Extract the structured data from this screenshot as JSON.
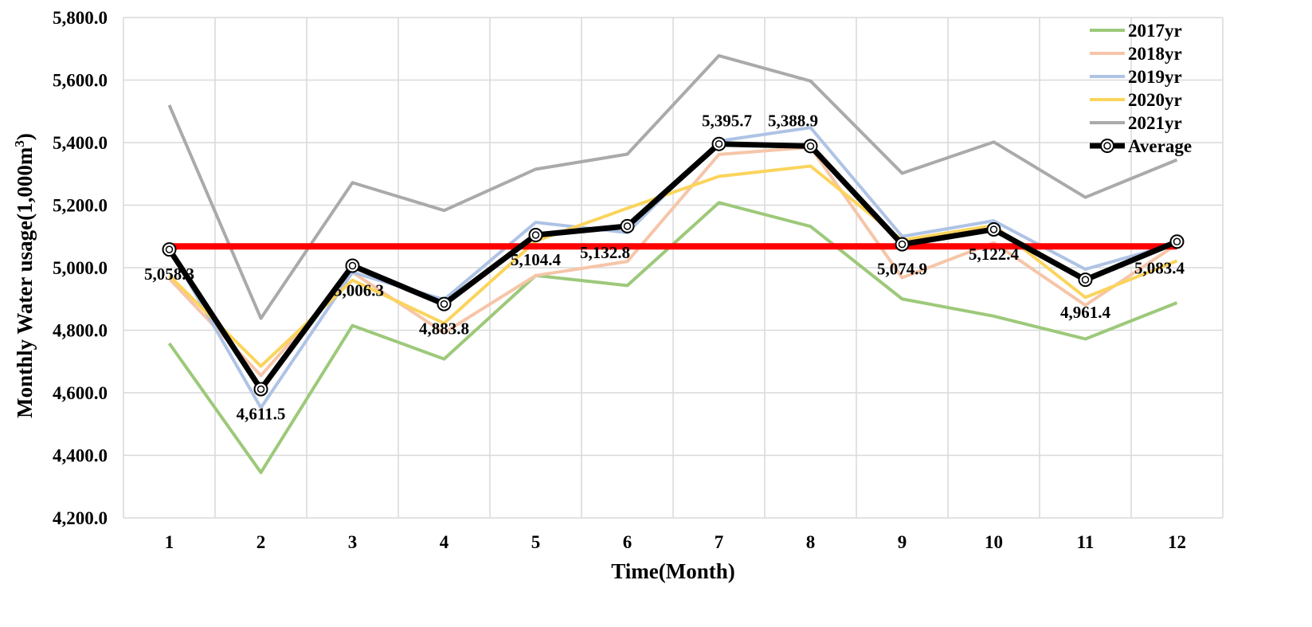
{
  "chart_data": {
    "type": "line",
    "title": "",
    "xlabel": "Time(Month)",
    "ylabel": "Monthly  Water usage(1,000m",
    "ylabel_superscript": "3",
    "ylabel_suffix": ")",
    "ylim": [
      4200,
      5800
    ],
    "yticks": [
      4200,
      4400,
      4600,
      4800,
      5000,
      5200,
      5400,
      5600,
      5800
    ],
    "ytick_labels": [
      "4,200.0",
      "4,400.0",
      "4,600.0",
      "4,800.0",
      "5,000.0",
      "5,200.0",
      "5,400.0",
      "5,600.0",
      "5,800.0"
    ],
    "categories": [
      "1",
      "2",
      "3",
      "4",
      "5",
      "6",
      "7",
      "8",
      "9",
      "10",
      "11",
      "12"
    ],
    "grid": true,
    "legend_position": "top-right",
    "series": [
      {
        "name": "2017yr",
        "color": "#9dc97a",
        "values": [
          4758,
          4345,
          4815,
          4708,
          4975,
          4943,
          5208,
          5132,
          4900,
          4845,
          4772,
          4888
        ]
      },
      {
        "name": "2018yr",
        "color": "#f6c5a8",
        "values": [
          4965,
          4655,
          4985,
          4792,
          4975,
          5020,
          5362,
          5385,
          4968,
          5080,
          4880,
          5075
        ]
      },
      {
        "name": "2019yr",
        "color": "#aec3e5",
        "values": [
          5062,
          4552,
          4985,
          4898,
          5145,
          5112,
          5405,
          5448,
          5100,
          5150,
          4995,
          5078
        ]
      },
      {
        "name": "2020yr",
        "color": "#fbd45c",
        "values": [
          4975,
          4685,
          4960,
          4822,
          5085,
          5190,
          5292,
          5325,
          5088,
          5135,
          4905,
          5022
        ]
      },
      {
        "name": "2021yr",
        "color": "#aaaaaa",
        "values": [
          5520,
          4838,
          5272,
          5183,
          5315,
          5363,
          5678,
          5597,
          5302,
          5402,
          5225,
          5345
        ]
      },
      {
        "name": "Average",
        "color": "#000000",
        "values": [
          5058.3,
          4611.5,
          5006.3,
          4883.8,
          5104.4,
          5132.8,
          5395.7,
          5388.9,
          5074.9,
          5122.4,
          4961.4,
          5083.4
        ]
      }
    ],
    "data_labels": [
      "5,058.3",
      "4,611.5",
      "5,006.3",
      "4,883.8",
      "5,104.4",
      "5,132.8",
      "5,395.7",
      "5,388.9",
      "5,074.9",
      "5,122.4",
      "4,961.4",
      "5,083.4"
    ],
    "reference_line": {
      "value": 5068,
      "color": "#ff0000"
    }
  }
}
